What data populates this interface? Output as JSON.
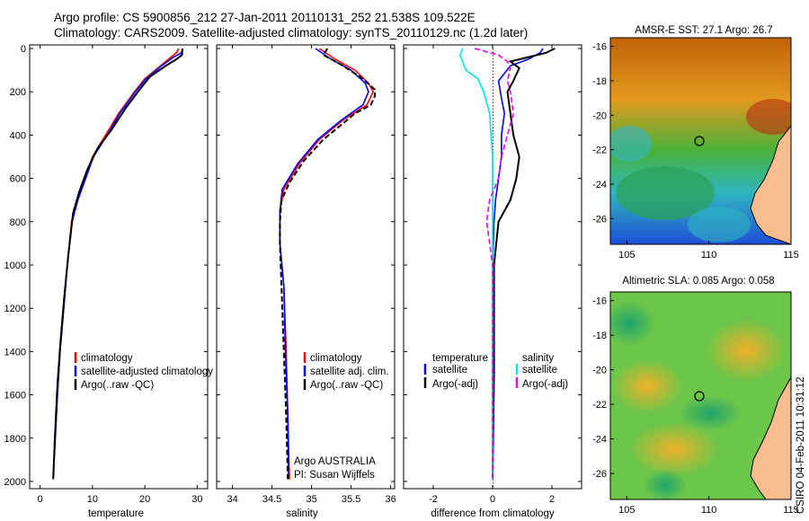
{
  "header": {
    "line1": "Argo profile: CS 5900856_212 27-Jan-2011 20110131_252 21.538S 109.522E",
    "line2": "Climatology: CARS2009. Satellite-adjusted climatology: synTS_20110129.nc (1.2d later)"
  },
  "side_text": "CSIRO 04-Feb-2011 10:31:12",
  "colors": {
    "climatology": "#ff0000",
    "satellite": "#0000ff",
    "argo": "#000000",
    "salinity_satellite": "#00e5ee",
    "salinity_argo": "#ee00ee"
  },
  "chart_data": [
    {
      "type": "line",
      "panel": "temperature",
      "xlabel": "temperature",
      "ylabel": "",
      "xlim": [
        -2,
        32
      ],
      "ylim": [
        2050,
        0
      ],
      "y_reversed": true,
      "xticks": [
        0,
        10,
        20,
        30
      ],
      "yticks": [
        0,
        200,
        400,
        600,
        800,
        1000,
        1200,
        1400,
        1600,
        1800,
        2000
      ],
      "legend": {
        "entries": [
          "climatology",
          "satellite-adjusted climatology",
          "Argo(..raw -QC)"
        ],
        "placement": "lower-middle"
      },
      "series": [
        {
          "name": "climatology",
          "color_key": "climatology",
          "points": [
            [
              26.5,
              0
            ],
            [
              26,
              20
            ],
            [
              25,
              40
            ],
            [
              23,
              80
            ],
            [
              20,
              140
            ],
            [
              18,
              200
            ],
            [
              15,
              300
            ],
            [
              12.5,
              400
            ],
            [
              10,
              500
            ],
            [
              8.5,
              600
            ],
            [
              7,
              700
            ],
            [
              6,
              800
            ],
            [
              5.2,
              1000
            ],
            [
              4.5,
              1200
            ],
            [
              3.8,
              1400
            ],
            [
              3.3,
              1600
            ],
            [
              2.9,
              1800
            ],
            [
              2.5,
              1980
            ]
          ]
        },
        {
          "name": "satellite-adjusted climatology",
          "color_key": "satellite",
          "points": [
            [
              27.2,
              0
            ],
            [
              27,
              20
            ],
            [
              25.5,
              40
            ],
            [
              23.2,
              80
            ],
            [
              20.2,
              140
            ],
            [
              18.2,
              200
            ],
            [
              15.2,
              300
            ],
            [
              12.8,
              400
            ],
            [
              10.2,
              500
            ],
            [
              8.7,
              600
            ],
            [
              7.2,
              700
            ],
            [
              6.1,
              800
            ],
            [
              5.2,
              1000
            ],
            [
              4.5,
              1200
            ],
            [
              3.8,
              1400
            ],
            [
              3.3,
              1600
            ],
            [
              2.9,
              1800
            ],
            [
              2.5,
              1980
            ]
          ]
        },
        {
          "name": "Argo(..raw -QC)",
          "color_key": "argo",
          "points": [
            [
              27.2,
              0
            ],
            [
              27.1,
              30
            ],
            [
              26,
              50
            ],
            [
              24,
              80
            ],
            [
              21,
              130
            ],
            [
              19,
              190
            ],
            [
              16.5,
              270
            ],
            [
              13.5,
              380
            ],
            [
              11,
              460
            ],
            [
              9,
              560
            ],
            [
              7.5,
              660
            ],
            [
              6.3,
              760
            ],
            [
              5.4,
              950
            ],
            [
              4.6,
              1150
            ],
            [
              3.9,
              1350
            ],
            [
              3.3,
              1550
            ],
            [
              2.8,
              1800
            ],
            [
              2.5,
              1990
            ]
          ]
        }
      ]
    },
    {
      "type": "line",
      "panel": "salinity",
      "xlabel": "salinity",
      "xlim": [
        33.8,
        36.05
      ],
      "ylim": [
        2050,
        0
      ],
      "y_reversed": true,
      "xticks": [
        34,
        34.5,
        35,
        35.5,
        36
      ],
      "legend": {
        "entries": [
          "climatology",
          "satellite adj. clim.",
          "Argo(..raw -QC)"
        ],
        "placement": "lower-middle"
      },
      "annotations": [
        "Argo AUSTRALIA",
        "PI: Susan Wijffels"
      ],
      "series": [
        {
          "name": "climatology",
          "color_key": "climatology",
          "points": [
            [
              35.1,
              0
            ],
            [
              35.3,
              50
            ],
            [
              35.55,
              100
            ],
            [
              35.72,
              160
            ],
            [
              35.78,
              200
            ],
            [
              35.7,
              260
            ],
            [
              35.4,
              330
            ],
            [
              35.1,
              420
            ],
            [
              34.85,
              530
            ],
            [
              34.65,
              650
            ],
            [
              34.6,
              750
            ],
            [
              34.6,
              900
            ],
            [
              34.65,
              1100
            ],
            [
              34.68,
              1400
            ],
            [
              34.7,
              1700
            ],
            [
              34.72,
              1990
            ]
          ]
        },
        {
          "name": "satellite adj. clim.",
          "color_key": "satellite",
          "points": [
            [
              35.05,
              0
            ],
            [
              35.25,
              50
            ],
            [
              35.5,
              100
            ],
            [
              35.68,
              160
            ],
            [
              35.72,
              200
            ],
            [
              35.65,
              260
            ],
            [
              35.38,
              330
            ],
            [
              35.08,
              420
            ],
            [
              34.83,
              530
            ],
            [
              34.63,
              650
            ],
            [
              34.6,
              750
            ],
            [
              34.6,
              900
            ],
            [
              34.65,
              1100
            ],
            [
              34.67,
              1400
            ],
            [
              34.7,
              1700
            ],
            [
              34.71,
              1990
            ]
          ]
        },
        {
          "name": "Argo(..raw -QC)",
          "color_key": "argo",
          "points": [
            [
              35.2,
              0
            ],
            [
              35.15,
              30
            ],
            [
              35.4,
              80
            ],
            [
              35.65,
              140
            ],
            [
              35.8,
              190
            ],
            [
              35.8,
              220
            ],
            [
              35.75,
              260
            ],
            [
              35.55,
              300
            ],
            [
              35.35,
              360
            ],
            [
              35.15,
              420
            ],
            [
              34.9,
              520
            ],
            [
              34.72,
              620
            ],
            [
              34.62,
              700
            ],
            [
              34.6,
              800
            ],
            [
              34.6,
              900
            ],
            [
              34.62,
              1100
            ],
            [
              34.65,
              1400
            ],
            [
              34.68,
              1700
            ],
            [
              34.7,
              1990
            ]
          ]
        }
      ]
    },
    {
      "type": "line",
      "panel": "difference",
      "xlabel": "difference from climatology",
      "xlim": [
        -3,
        3
      ],
      "ylim": [
        2050,
        0
      ],
      "y_reversed": true,
      "xticks": [
        -2,
        0,
        2
      ],
      "legend": {
        "entries": [
          "temperature",
          "satellite",
          "Argo(-adj)",
          "salinity",
          "satellite",
          "Argo(-adj)"
        ],
        "placement": "lower-middle"
      },
      "series": [
        {
          "name": "temperature satellite",
          "color_key": "satellite",
          "points": [
            [
              1.7,
              0
            ],
            [
              1.6,
              20
            ],
            [
              1.2,
              50
            ],
            [
              0.6,
              80
            ],
            [
              0.2,
              150
            ],
            [
              0.3,
              230
            ],
            [
              0.4,
              300
            ],
            [
              0.3,
              400
            ],
            [
              0.3,
              500
            ],
            [
              0.2,
              600
            ],
            [
              0.1,
              700
            ],
            [
              0.05,
              800
            ],
            [
              0,
              1000
            ],
            [
              0,
              1500
            ],
            [
              0,
              1990
            ]
          ]
        },
        {
          "name": "temperature Argo(-adj)",
          "color_key": "argo",
          "points": [
            [
              2.1,
              0
            ],
            [
              1.8,
              20
            ],
            [
              1.2,
              40
            ],
            [
              0.6,
              60
            ],
            [
              0.9,
              90
            ],
            [
              0.7,
              150
            ],
            [
              0.5,
              200
            ],
            [
              0.6,
              300
            ],
            [
              0.7,
              400
            ],
            [
              0.9,
              500
            ],
            [
              0.8,
              600
            ],
            [
              0.6,
              700
            ],
            [
              0.2,
              800
            ],
            [
              0.05,
              1000
            ],
            [
              0.05,
              1500
            ],
            [
              0,
              1990
            ]
          ]
        },
        {
          "name": "salinity satellite",
          "color_key": "salinity_satellite",
          "points": [
            [
              -1,
              0
            ],
            [
              -1.1,
              30
            ],
            [
              -0.9,
              100
            ],
            [
              -0.5,
              140
            ],
            [
              -0.3,
              200
            ],
            [
              -0.1,
              300
            ],
            [
              0,
              500
            ],
            [
              0,
              1000
            ],
            [
              0,
              1500
            ],
            [
              0,
              1990
            ]
          ]
        },
        {
          "name": "salinity Argo(-adj)",
          "color_key": "salinity_argo",
          "points": [
            [
              -0.6,
              0
            ],
            [
              0.2,
              30
            ],
            [
              0.5,
              60
            ],
            [
              0.6,
              90
            ],
            [
              0.5,
              150
            ],
            [
              0.6,
              200
            ],
            [
              0.7,
              300
            ],
            [
              0.5,
              400
            ],
            [
              0.3,
              500
            ],
            [
              0.2,
              600
            ],
            [
              -0.1,
              700
            ],
            [
              -0.2,
              800
            ],
            [
              0,
              1000
            ],
            [
              0,
              1500
            ],
            [
              0,
              1990
            ]
          ]
        }
      ]
    },
    {
      "type": "heatmap",
      "panel": "sst_map",
      "title": "AMSR-E SST: 27.1 Argo: 26.7",
      "xlim": [
        104,
        115
      ],
      "ylim": [
        -27.5,
        -15.5
      ],
      "xticks": [
        105,
        110,
        115
      ],
      "yticks": [
        -16,
        -18,
        -20,
        -22,
        -24,
        -26
      ],
      "marker": {
        "lon": 109.522,
        "lat": -21.538
      }
    },
    {
      "type": "heatmap",
      "panel": "sla_map",
      "title": "Altimetric SLA: 0.085 Argo: 0.058",
      "xlim": [
        104,
        115
      ],
      "ylim": [
        -27.5,
        -15.5
      ],
      "xticks": [
        105,
        110,
        115
      ],
      "yticks": [
        -16,
        -18,
        -20,
        -22,
        -24,
        -26
      ],
      "marker": {
        "lon": 109.522,
        "lat": -21.538
      }
    }
  ]
}
